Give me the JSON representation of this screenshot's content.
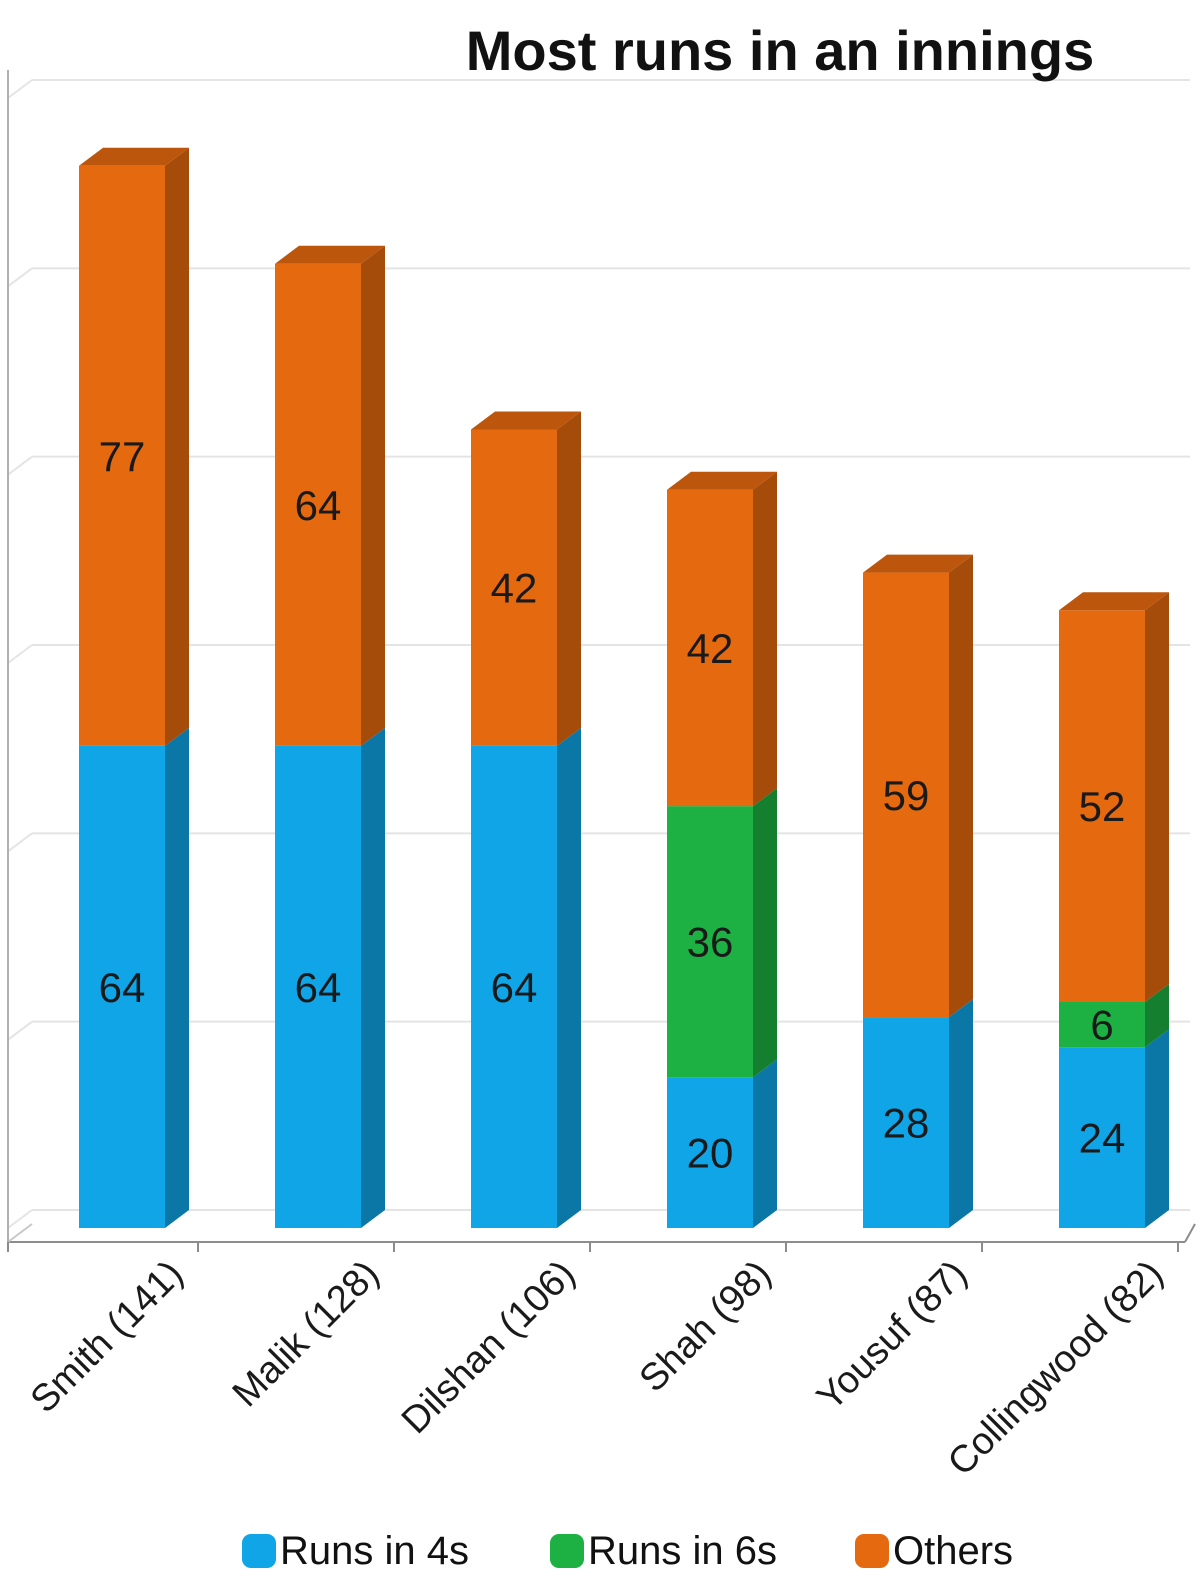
{
  "chart_data": {
    "type": "bar",
    "stacked": true,
    "three_d": true,
    "title": "Most runs in an innings",
    "xlabel": "",
    "ylabel": "",
    "ylim": [
      0,
      150
    ],
    "grid": true,
    "legend_position": "bottom",
    "categories": [
      "Smith (141)",
      "Malik (128)",
      "Dilshan (106)",
      "Shah (98)",
      "Yousuf (87)",
      "Collingwood (82)"
    ],
    "series": [
      {
        "name": "Runs in 4s",
        "color": "#0fa5e6",
        "values": [
          64,
          64,
          64,
          20,
          28,
          24
        ],
        "labels": [
          "64",
          "64",
          "64",
          "20",
          "28",
          "24"
        ]
      },
      {
        "name": "Runs in 6s",
        "color": "#1db043",
        "values": [
          0,
          0,
          0,
          36,
          0,
          6
        ],
        "labels": [
          "",
          "",
          "",
          "36",
          "",
          "6"
        ]
      },
      {
        "name": "Others",
        "color": "#e5690f",
        "values": [
          77,
          64,
          42,
          42,
          59,
          52
        ],
        "labels": [
          "77",
          "64",
          "42",
          "42",
          "59",
          "52"
        ]
      }
    ]
  }
}
